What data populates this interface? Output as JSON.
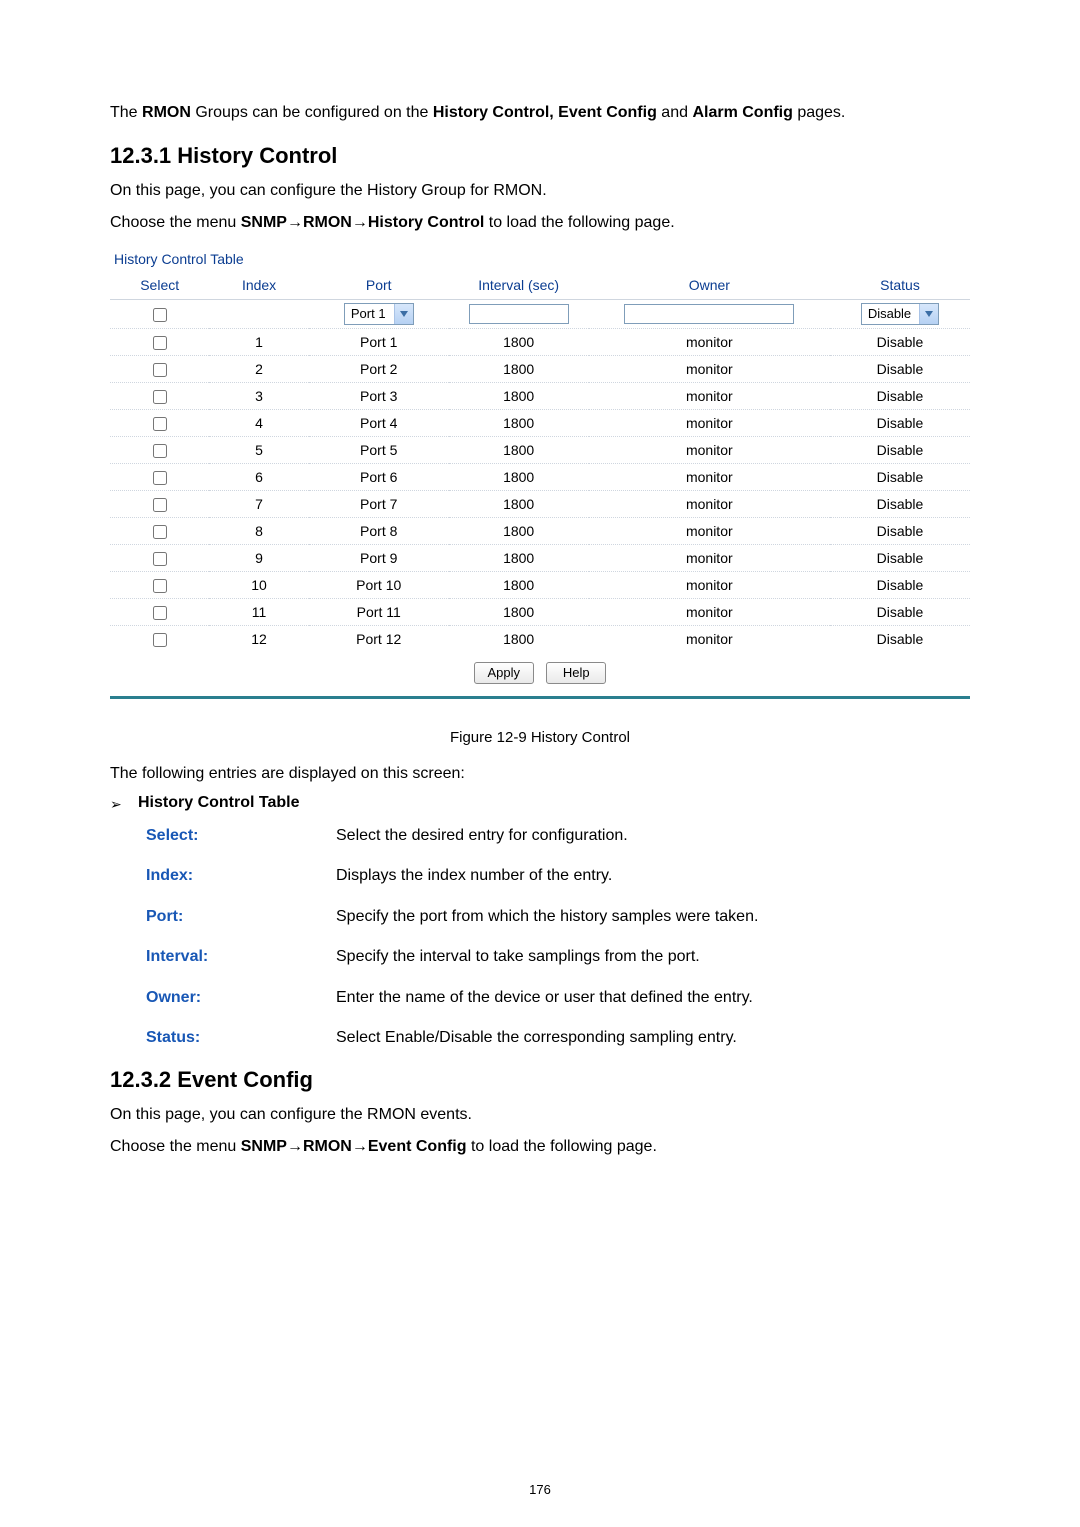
{
  "intro": {
    "pre": "The ",
    "b1": "RMON",
    "mid": " Groups can be configured on the ",
    "b2": "History Control, Event Config",
    "mid2": " and ",
    "b3": "Alarm Config",
    "post": " pages."
  },
  "section1": {
    "heading": "12.3.1  History Control",
    "p1": "On this page, you can configure the History Group for RMON.",
    "p2_pre": "Choose the menu ",
    "p2_bold": "SNMP→RMON→History Control",
    "p2_post": " to load the following page."
  },
  "table": {
    "title": "History Control Table",
    "headers": {
      "select": "Select",
      "index": "Index",
      "port": "Port",
      "interval": "Interval (sec)",
      "owner": "Owner",
      "status": "Status"
    },
    "port_select": "Port 1",
    "status_select": "Disable",
    "rows": [
      {
        "index": "1",
        "port": "Port 1",
        "interval": "1800",
        "owner": "monitor",
        "status": "Disable"
      },
      {
        "index": "2",
        "port": "Port 2",
        "interval": "1800",
        "owner": "monitor",
        "status": "Disable"
      },
      {
        "index": "3",
        "port": "Port 3",
        "interval": "1800",
        "owner": "monitor",
        "status": "Disable"
      },
      {
        "index": "4",
        "port": "Port 4",
        "interval": "1800",
        "owner": "monitor",
        "status": "Disable"
      },
      {
        "index": "5",
        "port": "Port 5",
        "interval": "1800",
        "owner": "monitor",
        "status": "Disable"
      },
      {
        "index": "6",
        "port": "Port 6",
        "interval": "1800",
        "owner": "monitor",
        "status": "Disable"
      },
      {
        "index": "7",
        "port": "Port 7",
        "interval": "1800",
        "owner": "monitor",
        "status": "Disable"
      },
      {
        "index": "8",
        "port": "Port 8",
        "interval": "1800",
        "owner": "monitor",
        "status": "Disable"
      },
      {
        "index": "9",
        "port": "Port 9",
        "interval": "1800",
        "owner": "monitor",
        "status": "Disable"
      },
      {
        "index": "10",
        "port": "Port 10",
        "interval": "1800",
        "owner": "monitor",
        "status": "Disable"
      },
      {
        "index": "11",
        "port": "Port 11",
        "interval": "1800",
        "owner": "monitor",
        "status": "Disable"
      },
      {
        "index": "12",
        "port": "Port 12",
        "interval": "1800",
        "owner": "monitor",
        "status": "Disable"
      }
    ],
    "buttons": {
      "apply": "Apply",
      "help": "Help"
    }
  },
  "caption": "Figure 12-9 History Control",
  "entries_line": "The following entries are displayed on this screen:",
  "defs_title": "History Control Table",
  "defs": [
    {
      "term": "Select:",
      "desc": "Select the desired entry for configuration."
    },
    {
      "term": "Index:",
      "desc": "Displays the index number of the entry."
    },
    {
      "term": "Port:",
      "desc": "Specify the port from which the history samples were taken."
    },
    {
      "term": "Interval:",
      "desc": "Specify the interval to take samplings from the port."
    },
    {
      "term": "Owner:",
      "desc": "Enter the name of the device or user that defined the entry."
    },
    {
      "term": "Status:",
      "desc": "Select Enable/Disable the corresponding sampling entry."
    }
  ],
  "section2": {
    "heading": "12.3.2  Event Config",
    "p1": "On this page, you can configure the RMON events.",
    "p2_pre": "Choose the menu ",
    "p2_bold": "SNMP→RMON→Event Config",
    "p2_post": " to load the following page."
  },
  "page_number": "176",
  "style": {
    "link_color": "#1857b5",
    "heading_color": "#0b3d91",
    "rule_color": "#2a7f8f",
    "border_color": "#cfd6df",
    "font_body_pt": 16,
    "font_table_pt": 14
  }
}
